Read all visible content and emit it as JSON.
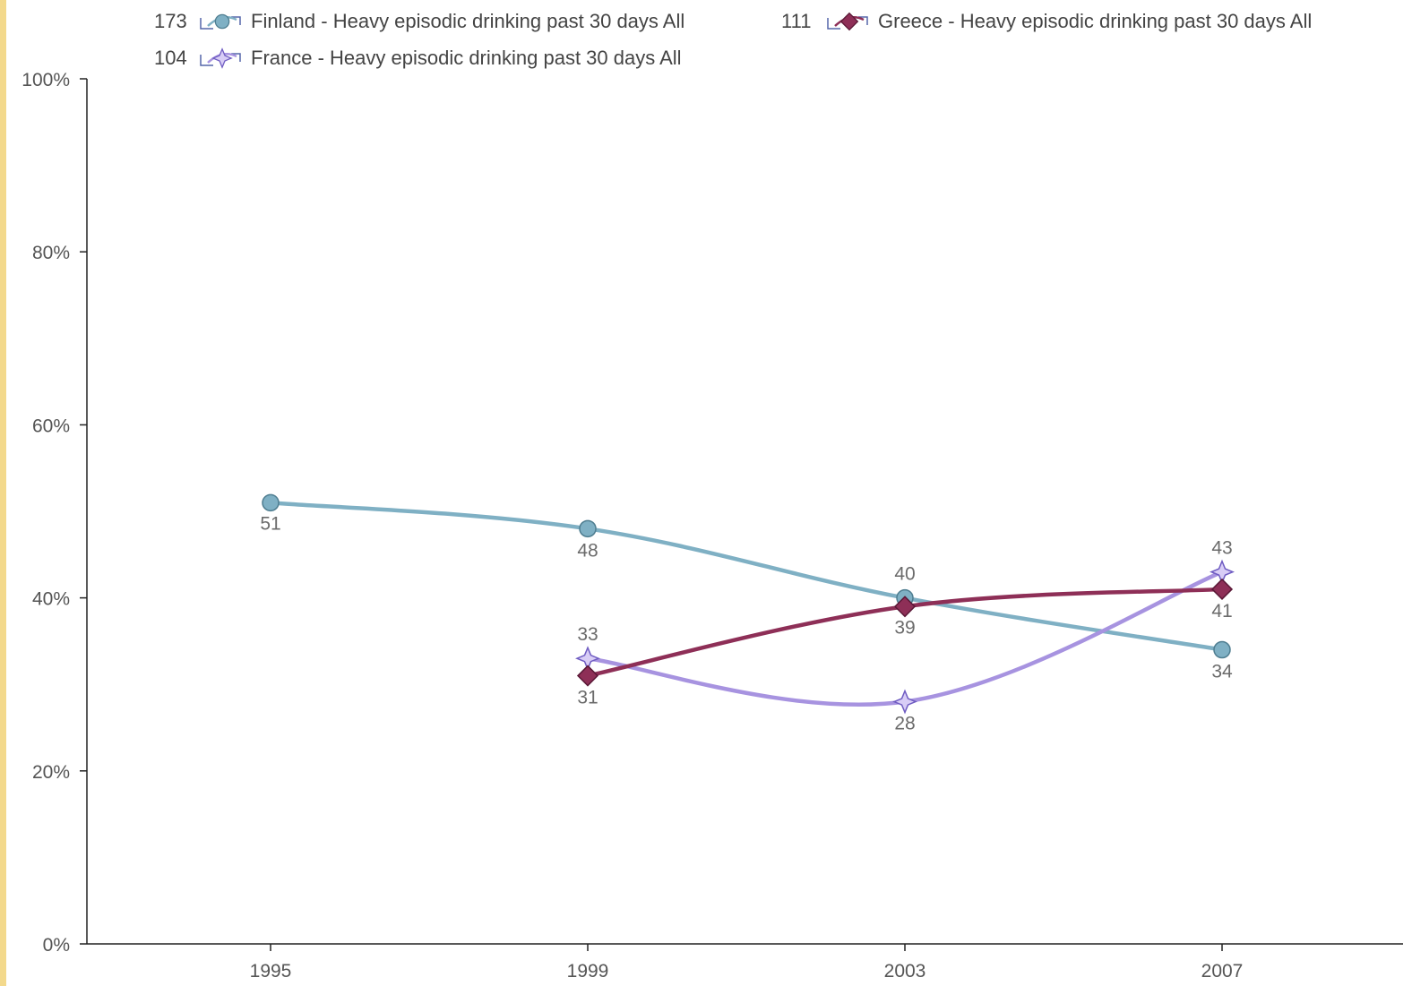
{
  "chart_data": {
    "type": "line",
    "x": [
      "1995",
      "1999",
      "2003",
      "2007"
    ],
    "ylim": [
      0,
      100
    ],
    "yticks": [
      "0%",
      "20%",
      "40%",
      "60%",
      "80%",
      "100%"
    ],
    "grid": false,
    "legend_position": "top",
    "series": [
      {
        "code": "173",
        "name": "Finland - Heavy episodic drinking past 30 days All",
        "marker": "circle",
        "color": "#7fb0c4",
        "values": [
          51,
          48,
          40,
          34
        ],
        "value_labels": [
          "51",
          "48",
          "40",
          "34"
        ]
      },
      {
        "code": "111",
        "name": "Greece - Heavy episodic drinking past 30 days All",
        "marker": "diamond",
        "color": "#8e2f57",
        "values": [
          null,
          31,
          39,
          41
        ],
        "value_labels": [
          "",
          "31",
          "39",
          "41"
        ]
      },
      {
        "code": "104",
        "name": "France - Heavy episodic drinking past 30 days All",
        "marker": "star",
        "color": "#a793e0",
        "values": [
          null,
          33,
          28,
          43
        ],
        "value_labels": [
          "",
          "33",
          "28",
          "43"
        ]
      }
    ]
  }
}
